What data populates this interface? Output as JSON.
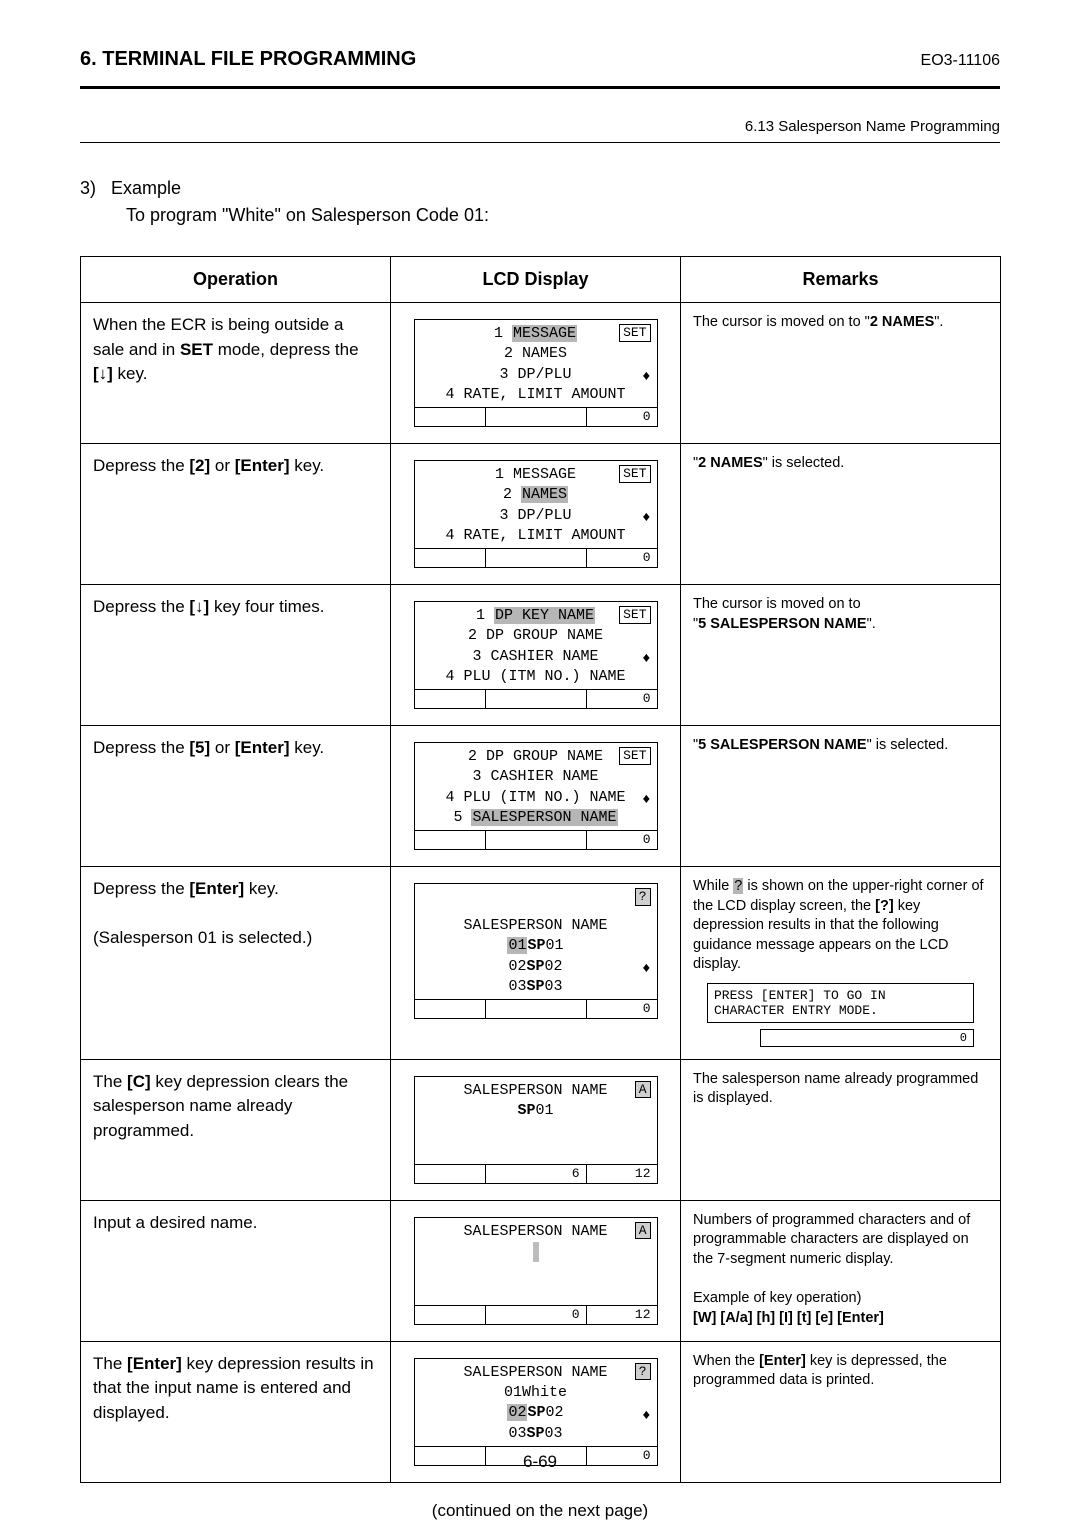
{
  "header": {
    "left": "6. TERMINAL FILE PROGRAMMING",
    "right": "EO3-11106",
    "sub": "6.13 Salesperson Name Programming"
  },
  "example": {
    "num": "3)",
    "title": "Example",
    "sub": "To program \"White\" on Salesperson Code 01:"
  },
  "table": {
    "headers": [
      "Operation",
      "LCD Display",
      "Remarks"
    ],
    "rows": [
      {
        "op_html": "When the ECR is being outside a sale and in <b>SET</b> mode, depress the <b>[↓]</b> key.",
        "lcd": {
          "tag": "SET",
          "lines": [
            "1 <hl>MESSAGE</hl>",
            "2 NAMES",
            "3 DP/PLU",
            "4 RATE, LIMIT AMOUNT"
          ],
          "arrow": "♦",
          "bottom_mid": "",
          "bottom_right": "0"
        },
        "remarks_html": "The cursor is moved on to \"<b>2 NAMES</b>\"."
      },
      {
        "op_html": "Depress the <b>[2]</b> or <b>[Enter]</b> key.",
        "lcd": {
          "tag": "SET",
          "lines": [
            "1 MESSAGE",
            "2 <hl>NAMES</hl>",
            "3 DP/PLU",
            "4 RATE, LIMIT AMOUNT"
          ],
          "arrow": "♦",
          "bottom_mid": "",
          "bottom_right": "0"
        },
        "remarks_html": "\"<b>2 NAMES</b>\" is selected."
      },
      {
        "op_html": "Depress the <b>[↓]</b> key four times.",
        "lcd": {
          "tag": "SET",
          "lines": [
            "1 <hl>DP KEY NAME</hl>",
            "2 DP GROUP NAME",
            "3 CASHIER NAME",
            "4 PLU (ITM NO.) NAME"
          ],
          "arrow": "♦",
          "bottom_mid": "",
          "bottom_right": "0"
        },
        "remarks_html": "The cursor is moved on to<br>\"<b>5 SALESPERSON NAME</b>\"."
      },
      {
        "op_html": "Depress the <b>[5]</b> or <b>[Enter]</b> key.",
        "lcd": {
          "tag": "SET",
          "lines": [
            "2 DP GROUP NAME",
            "3 CASHIER NAME",
            "4 PLU (ITM NO.) NAME",
            "5 <hl>SALESPERSON NAME</hl>"
          ],
          "arrow": "♦",
          "bottom_mid": "",
          "bottom_right": "0"
        },
        "remarks_html": "\"<b>5 SALESPERSON NAME</b>\" is selected."
      },
      {
        "op_html": "Depress the <b>[Enter]</b> key.<br><br>(Salesperson 01 is selected.)",
        "lcd": {
          "tag": "?",
          "tag_hl": true,
          "pre_blank": true,
          "lines": [
            "SALESPERSON NAME",
            "<hl>01</hl><b>S</b><b>P</b>01",
            "02<b>S</b><b>P</b>02",
            "03<b>S</b><b>P</b>03"
          ],
          "arrow": "♦",
          "bottom_mid": "",
          "bottom_right": "0"
        },
        "remarks_html": "While <span class='hl'>?</span> is shown on the upper-right corner of the LCD display screen, the <b>[?]</b> key depression results in that the following guidance message appears on the LCD display.",
        "remarks_box": "PRESS [ENTER] TO GO IN\nCHARACTER ENTRY MODE.",
        "remarks_zero": "0"
      },
      {
        "op_html": "The <b>[C]</b> key depression clears the salesperson name already programmed.",
        "lcd": {
          "tag": "A",
          "tag_hl": true,
          "lines": [
            "SALESPERSON NAME",
            "<b>S</b><b>P</b>01",
            "",
            ""
          ],
          "bottom_left": "",
          "bottom_mid": "6",
          "bottom_right": "12"
        },
        "remarks_html": "The salesperson name already programmed is displayed."
      },
      {
        "op_html": "Input a desired name.",
        "lcd": {
          "tag": "A",
          "tag_hl": true,
          "lines": [
            "SALESPERSON NAME",
            "<span class='caret'>&nbsp;</span>",
            "",
            ""
          ],
          "bottom_left": "",
          "bottom_mid": "0",
          "bottom_right": "12"
        },
        "remarks_html": "Numbers of programmed characters and of programmable characters are displayed on the 7-segment numeric display.<br><br>Example of key operation)<br><b>[W] [A/a] [h] [I] [t] [e] [Enter]</b>"
      },
      {
        "op_html": "The <b>[Enter]</b> key depression results in that the input name is entered and displayed.",
        "lcd": {
          "tag": "?",
          "tag_hl": true,
          "lines": [
            "SALESPERSON NAME",
            "01White",
            "<hl>02</hl><b>S</b><b>P</b>02",
            "03<b>S</b><b>P</b>03"
          ],
          "arrow": "♦",
          "bottom_mid": "",
          "bottom_right": "0"
        },
        "remarks_html": "When the <b>[Enter]</b> key is depressed, the programmed data is printed."
      }
    ]
  },
  "continued": "(continued on the next page)",
  "footer": "6-69"
}
